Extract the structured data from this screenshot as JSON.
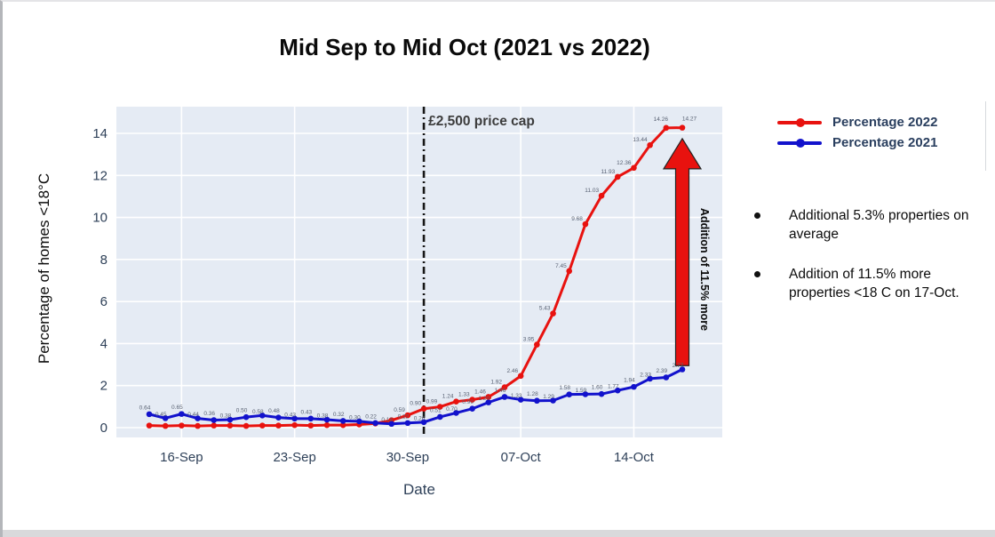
{
  "title": "Mid Sep to Mid Oct (2021 vs 2022)",
  "chart_data": {
    "type": "line",
    "title": "Mid Sep to Mid Oct (2021 vs 2022)",
    "xlabel": "Date",
    "ylabel": "Percentage of homes <18°C",
    "ylim": [
      0,
      14
    ],
    "yticks": [
      0,
      2,
      4,
      6,
      8,
      10,
      12,
      14
    ],
    "xticks": [
      "16-Sep",
      "23-Sep",
      "30-Sep",
      "07-Oct",
      "14-Oct"
    ],
    "grid": true,
    "plot_bg": "#e5ebf4",
    "grid_color": "#ffffff",
    "tick_color": "#2f4159",
    "legend_position": "top-right-outside",
    "categories": [
      "14-Sep",
      "15-Sep",
      "16-Sep",
      "17-Sep",
      "18-Sep",
      "19-Sep",
      "20-Sep",
      "21-Sep",
      "22-Sep",
      "23-Sep",
      "24-Sep",
      "25-Sep",
      "26-Sep",
      "27-Sep",
      "28-Sep",
      "29-Sep",
      "30-Sep",
      "01-Oct",
      "02-Oct",
      "03-Oct",
      "04-Oct",
      "05-Oct",
      "06-Oct",
      "07-Oct",
      "08-Oct",
      "09-Oct",
      "10-Oct",
      "11-Oct",
      "12-Oct",
      "13-Oct",
      "14-Oct",
      "15-Oct",
      "16-Oct",
      "17-Oct"
    ],
    "series": [
      {
        "name": "Percentage 2022",
        "color": "#e8120f",
        "label_start_index": 16,
        "values": [
          0.1,
          0.08,
          0.1,
          0.08,
          0.1,
          0.1,
          0.08,
          0.1,
          0.1,
          0.12,
          0.1,
          0.12,
          0.12,
          0.15,
          0.2,
          0.35,
          0.59,
          0.9,
          0.99,
          1.24,
          1.33,
          1.46,
          1.92,
          2.46,
          3.95,
          5.43,
          7.45,
          9.68,
          11.03,
          11.93,
          12.36,
          13.44,
          14.26,
          14.27
        ]
      },
      {
        "name": "Percentage 2021",
        "color": "#1212cc",
        "label_start_index": 0,
        "values": [
          0.64,
          0.45,
          0.65,
          0.44,
          0.36,
          0.38,
          0.5,
          0.58,
          0.48,
          0.43,
          0.43,
          0.38,
          0.32,
          0.3,
          0.22,
          0.18,
          0.22,
          0.26,
          0.51,
          0.7,
          0.9,
          1.2,
          1.46,
          1.33,
          1.28,
          1.29,
          1.58,
          1.59,
          1.6,
          1.77,
          1.94,
          2.33,
          2.39,
          2.77
        ]
      }
    ],
    "annotations": {
      "price_cap_line": {
        "label": "£2,500 price cap",
        "at_category": "01-Oct",
        "style": "dash-dot",
        "color": "#161616",
        "label_color": "#3c3c3c"
      },
      "growth_arrow": {
        "label": "Addition of 11.5% more",
        "at_category": "17-Oct",
        "from_value": 2.95,
        "to_value": 13.75,
        "color": "#e8120f",
        "outline_color": "#222222",
        "label_color": "#0a0a0a"
      }
    },
    "data_label_color": "#596273"
  },
  "legend": {
    "items": [
      {
        "label": "Percentage 2022",
        "color": "#e8120f"
      },
      {
        "label": "Percentage 2021",
        "color": "#1212cc"
      }
    ]
  },
  "bullets": [
    "Additional 5.3% properties on average",
    "Addition of 11.5% more properties <18 C on 17-Oct."
  ]
}
